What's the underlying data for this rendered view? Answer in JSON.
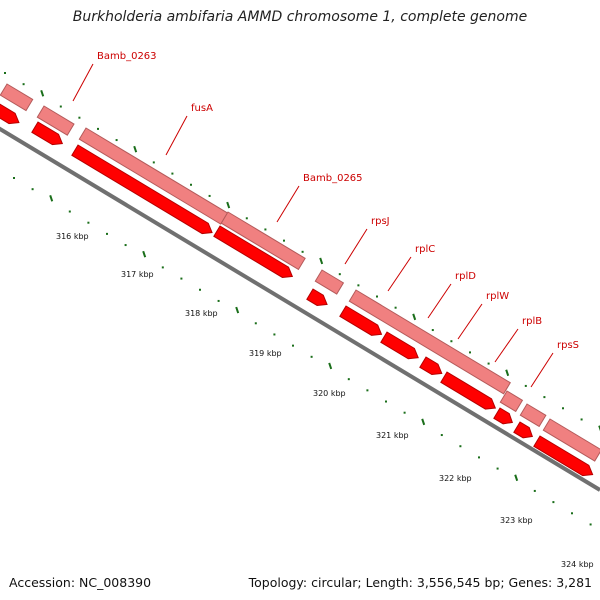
{
  "title": "Burkholderia ambifaria AMMD chromosome 1, complete genome",
  "footer": {
    "accession": "Accession: NC_008390",
    "summary": "Topology: circular; Length: 3,556,545 bp; Genes: 3,281"
  },
  "colors": {
    "gene_fill": "#ff0000",
    "gene_stroke": "#b40000",
    "cds_fill": "#f08080",
    "cds_stroke": "#b45a5a",
    "backbone": "#707070",
    "tick": "#1a6e1a",
    "label": "#cc0000"
  },
  "ticks": [
    "316 kbp",
    "317 kbp",
    "318 kbp",
    "319 kbp",
    "320 kbp",
    "321 kbp",
    "322 kbp",
    "323 kbp",
    "324 kbp"
  ],
  "genes": [
    {
      "name": "Bamb_0263",
      "labeled": true
    },
    {
      "name": "fusA",
      "labeled": true
    },
    {
      "name": "Bamb_0265",
      "labeled": true
    },
    {
      "name": "rpsJ",
      "labeled": true
    },
    {
      "name": "rplC",
      "labeled": true
    },
    {
      "name": "rplD",
      "labeled": true
    },
    {
      "name": "rplW",
      "labeled": true
    },
    {
      "name": "rplB",
      "labeled": true
    },
    {
      "name": "rpsS",
      "labeled": true
    }
  ]
}
